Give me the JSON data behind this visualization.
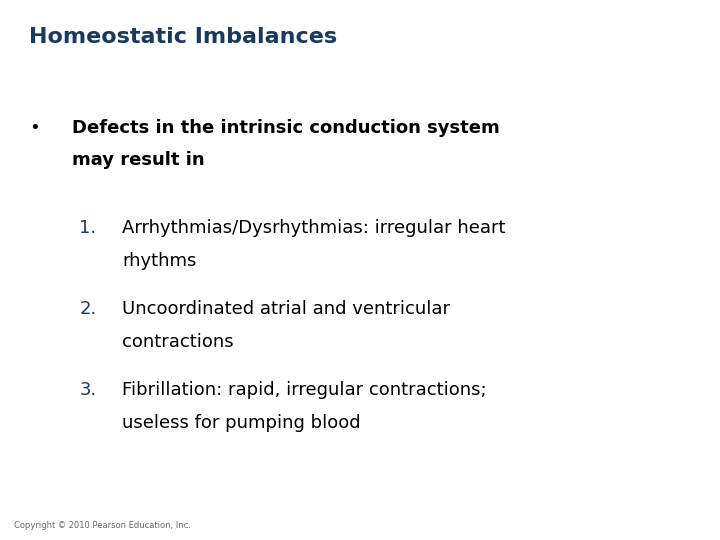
{
  "title": "Homeostatic Imbalances",
  "title_color": "#1a3a5c",
  "title_fontsize": 16,
  "background_color": "#ffffff",
  "bullet_symbol": "•",
  "bullet_text_line1": "Defects in the intrinsic conduction system",
  "bullet_text_line2": "    may result in",
  "bullet_color": "#000000",
  "bullet_fontsize": 13,
  "number_color": "#1a3a5c",
  "items": [
    [
      "Arrhythmias/Dysrhythmias: irregular heart",
      "rhythms"
    ],
    [
      "Uncoordinated atrial and ventricular",
      "contractions"
    ],
    [
      "Fibrillation: rapid, irregular contractions;",
      "useless for pumping blood"
    ]
  ],
  "items_color": "#000000",
  "items_fontsize": 13,
  "copyright": "Copyright © 2010 Pearson Education, Inc.",
  "copyright_fontsize": 6,
  "copyright_color": "#666666"
}
